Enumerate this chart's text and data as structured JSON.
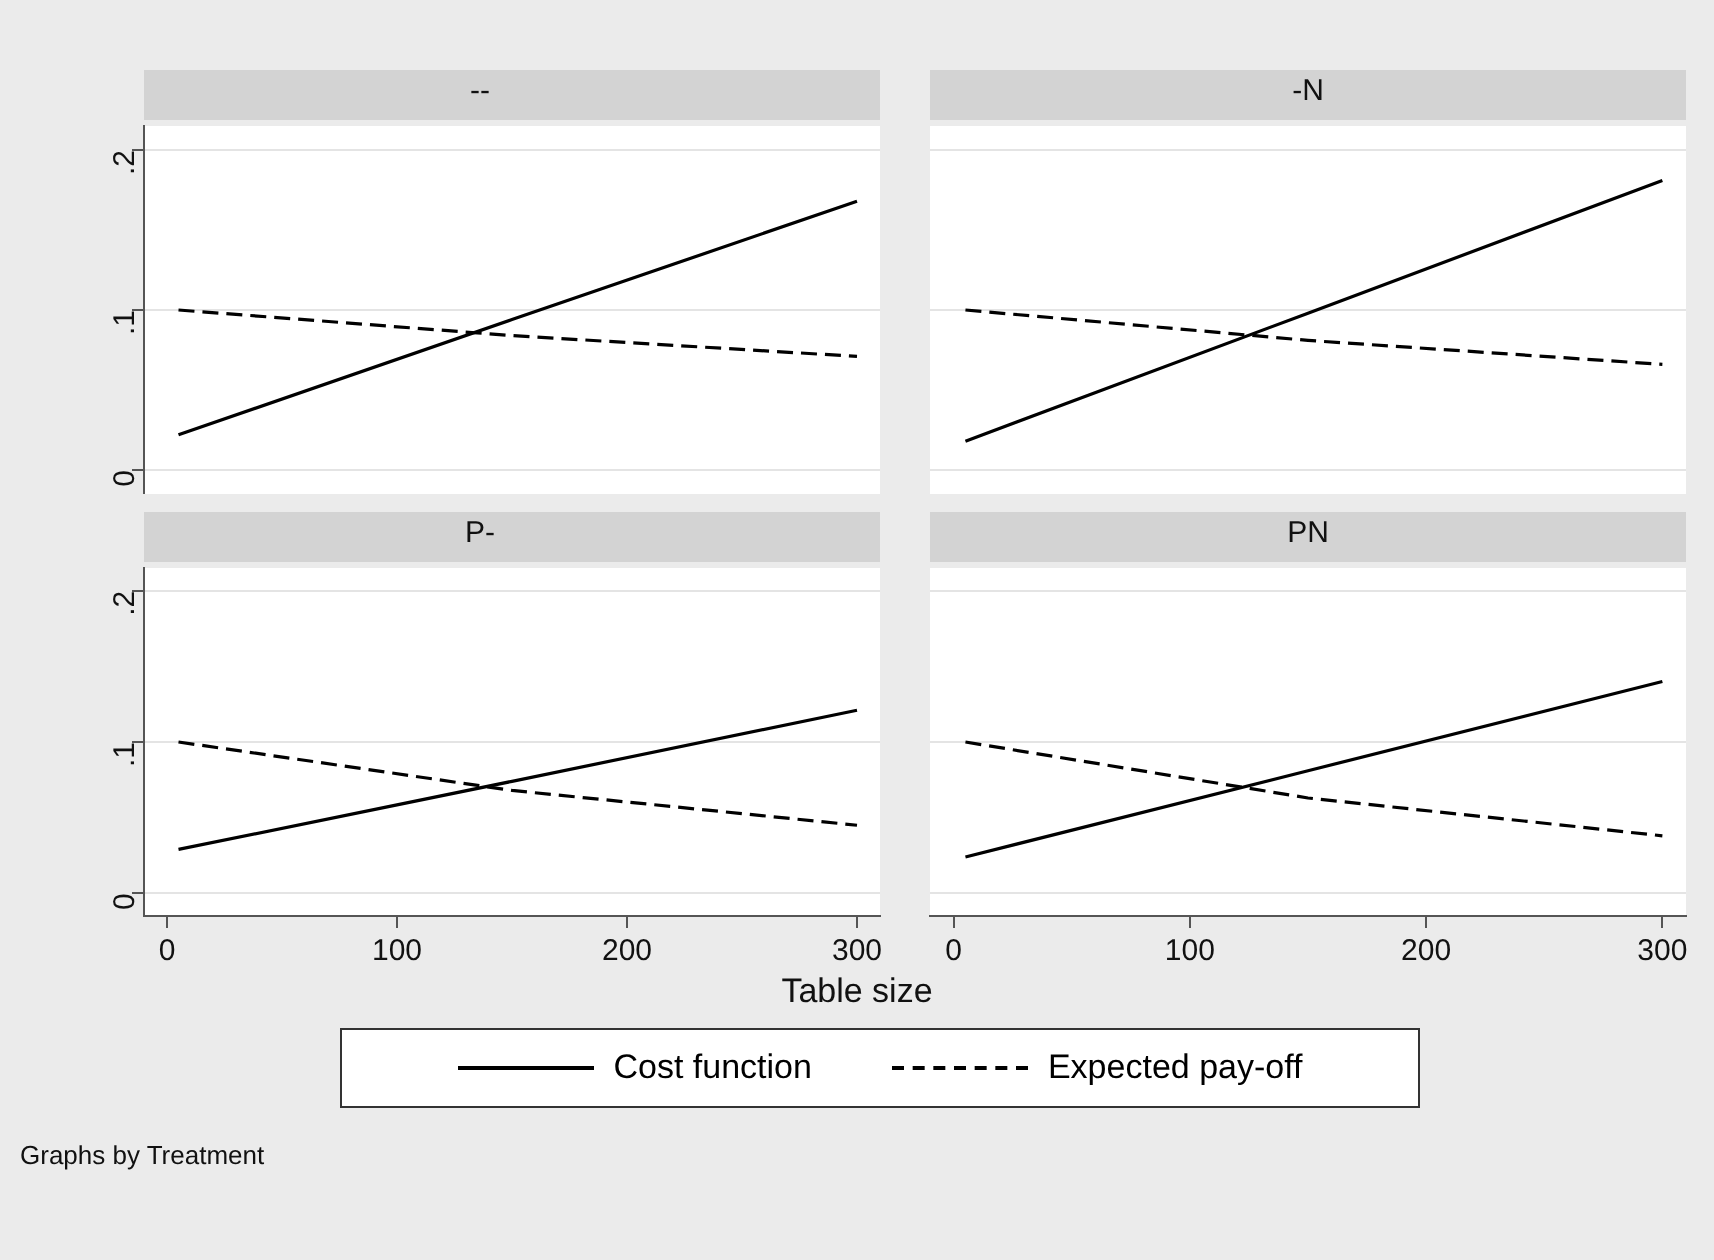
{
  "chart_data": [
    {
      "type": "line",
      "title": "--",
      "x": [
        5,
        150,
        300
      ],
      "xlim": [
        -10,
        310
      ],
      "ylim": [
        -0.015,
        0.215
      ],
      "yticks": [
        {
          "value": 0,
          "label": "0"
        },
        {
          "value": 0.1,
          "label": ".1"
        },
        {
          "value": 0.2,
          "label": ".2"
        }
      ],
      "grid": "y",
      "tick_labels": "y",
      "marker": "none",
      "series": [
        {
          "color": "#000000",
          "line_style": "solid",
          "values": [
            0.022,
            0.094,
            0.168
          ]
        },
        {
          "color": "#000000",
          "line_style": "dashed",
          "values": [
            0.1,
            0.084,
            0.071
          ]
        }
      ]
    },
    {
      "type": "line",
      "title": "-N",
      "x": [
        5,
        150,
        300
      ],
      "xlim": [
        -10,
        310
      ],
      "ylim": [
        -0.015,
        0.215
      ],
      "yticks": [
        0,
        0.1,
        0.2
      ],
      "grid": "y",
      "tick_labels": false,
      "marker": "none",
      "series": [
        {
          "color": "#000000",
          "line_style": "solid",
          "values": [
            0.018,
            0.098,
            0.181
          ]
        },
        {
          "color": "#000000",
          "line_style": "dashed",
          "values": [
            0.1,
            0.081,
            0.066
          ]
        }
      ]
    },
    {
      "type": "line",
      "title": "P-",
      "x": [
        5,
        150,
        300
      ],
      "xlim": [
        -10,
        310
      ],
      "xticks": [
        0,
        100,
        200,
        300
      ],
      "ylim": [
        -0.015,
        0.215
      ],
      "yticks": [
        {
          "value": 0,
          "label": "0"
        },
        {
          "value": 0.1,
          "label": ".1"
        },
        {
          "value": 0.2,
          "label": ".2"
        }
      ],
      "grid": "y",
      "marker": "none",
      "series": [
        {
          "color": "#000000",
          "line_style": "solid",
          "values": [
            0.029,
            0.074,
            0.121
          ]
        },
        {
          "color": "#000000",
          "line_style": "dashed",
          "values": [
            0.1,
            0.068,
            0.045
          ]
        }
      ]
    },
    {
      "type": "line",
      "title": "PN",
      "x": [
        5,
        150,
        300
      ],
      "xlim": [
        -10,
        310
      ],
      "xticks": [
        0,
        100,
        200,
        300
      ],
      "ylim": [
        -0.015,
        0.215
      ],
      "yticks": [
        0,
        0.1,
        0.2
      ],
      "grid": "y",
      "tick_labels": "x",
      "marker": "none",
      "xlabel": "Table size",
      "legend": "bottom",
      "annotations": [
        "Graphs by Treatment"
      ],
      "series": [
        {
          "name": "Cost function",
          "color": "#000000",
          "line_style": "solid",
          "values": [
            0.024,
            0.081,
            0.14
          ]
        },
        {
          "name": "Expected pay-off",
          "color": "#000000",
          "line_style": "dashed",
          "values": [
            0.1,
            0.063,
            0.038
          ]
        }
      ]
    }
  ]
}
